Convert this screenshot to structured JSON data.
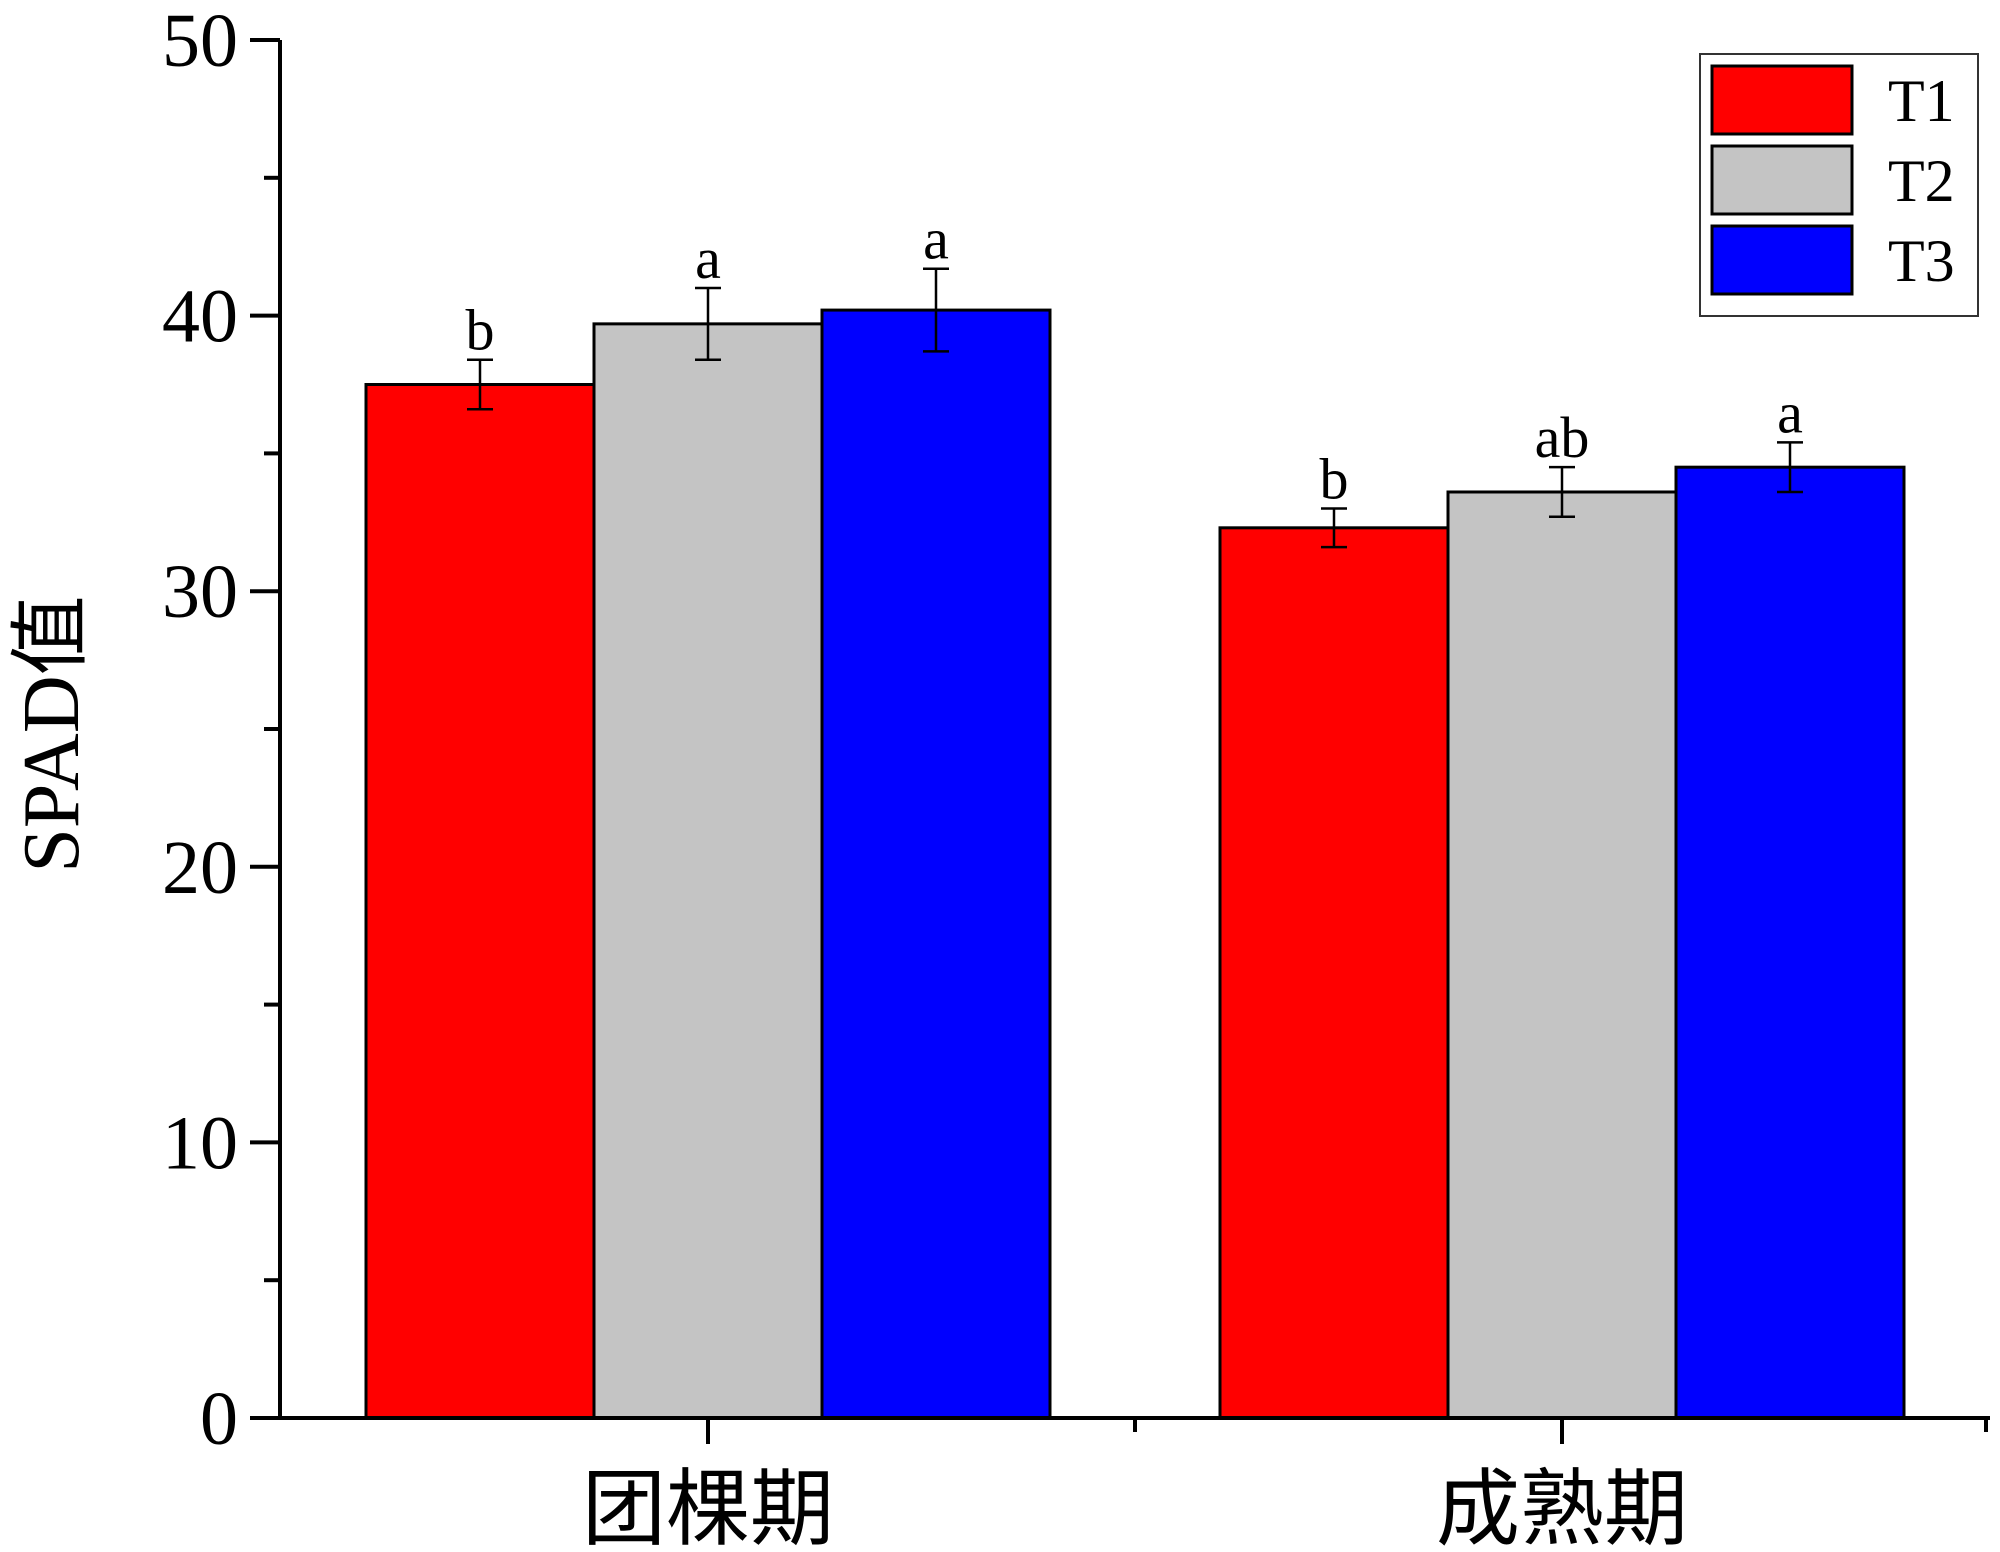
{
  "chart_data": {
    "type": "bar",
    "title": "",
    "xlabel": "",
    "ylabel": "SPAD值",
    "ylim": [
      0,
      50
    ],
    "yticks": [
      0,
      10,
      20,
      30,
      40,
      50
    ],
    "categories": [
      "团棵期",
      "成熟期"
    ],
    "legend_position": "top-right",
    "series": [
      {
        "name": "T1",
        "color": "#ff0000",
        "values": [
          37.5,
          32.3
        ],
        "errors": [
          0.9,
          0.7
        ],
        "labels": [
          "b",
          "b"
        ]
      },
      {
        "name": "T2",
        "color": "#c4c4c4",
        "values": [
          39.7,
          33.6
        ],
        "errors": [
          1.3,
          0.9
        ],
        "labels": [
          "a",
          "ab"
        ]
      },
      {
        "name": "T3",
        "color": "#0000ff",
        "values": [
          40.2,
          34.5
        ],
        "errors": [
          1.5,
          0.9
        ],
        "labels": [
          "a",
          "a"
        ]
      }
    ]
  }
}
